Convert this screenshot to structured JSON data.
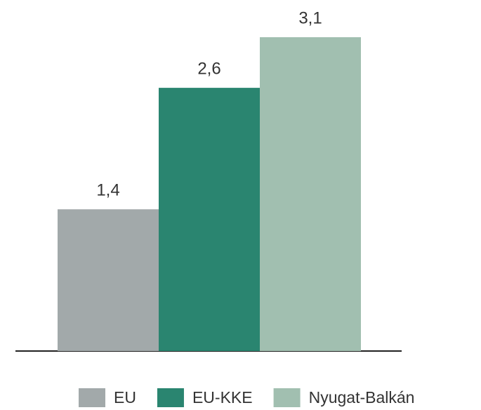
{
  "chart_data": {
    "type": "bar",
    "categories": [
      null
    ],
    "series": [
      {
        "name": "EU",
        "color": "#a2a9aa",
        "values": [
          1.4
        ],
        "value_labels": [
          "1,4"
        ]
      },
      {
        "name": "EU-KKE",
        "color": "#2a8570",
        "values": [
          2.6
        ],
        "value_labels": [
          "2,6"
        ]
      },
      {
        "name": "Nyugat-Balkán",
        "color": "#a1bfb0",
        "values": [
          3.1
        ],
        "value_labels": [
          "3,1"
        ]
      }
    ],
    "legend": "bottom"
  }
}
